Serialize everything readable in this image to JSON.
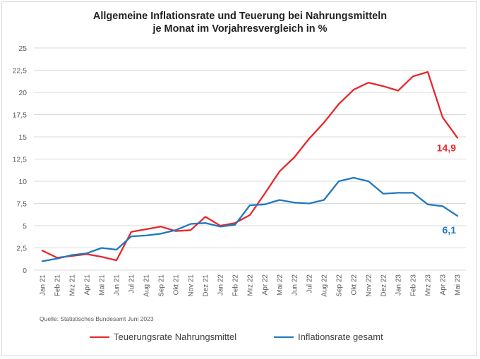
{
  "chart_data": {
    "type": "line",
    "title_line1": "Allgemeine Inflationsrate und Teuerung bei Nahrungsmitteln",
    "title_line2": "je Monat im Vorjahresvergleich in %",
    "source": "Quelle: Statistisches Bundesamt Juni 2023",
    "ylim": [
      0,
      25
    ],
    "yticks": [
      "0",
      "2,5",
      "5",
      "7,5",
      "10",
      "12,5",
      "15",
      "17,5",
      "20",
      "22,5",
      "25"
    ],
    "ytick_values": [
      0,
      2.5,
      5,
      7.5,
      10,
      12.5,
      15,
      17.5,
      20,
      22.5,
      25
    ],
    "grid": true,
    "legend_position": "bottom",
    "categories": [
      "Jan 21",
      "Feb 21",
      "Mrz 21",
      "Apr 21",
      "Mai 21",
      "Jun 21",
      "Jul 21",
      "Aug 21",
      "Sep 21",
      "Okt 21",
      "Nov 21",
      "Dez 21",
      "Jan 22",
      "Feb 22",
      "Mrz 22",
      "Apr 22",
      "Mai 22",
      "Jun 22",
      "Jul 22",
      "Aug 22",
      "Sep 22",
      "Okt 22",
      "Nov 22",
      "Dez 22",
      "Jan 23",
      "Feb 23",
      "Mrz 23",
      "Apr 23",
      "Mai 23"
    ],
    "series": [
      {
        "name": "Teuerungsrate Nahrungsmittel",
        "color": "#e8262b",
        "values": [
          2.2,
          1.4,
          1.6,
          1.8,
          1.5,
          1.1,
          4.3,
          4.6,
          4.9,
          4.4,
          4.5,
          6.0,
          5.0,
          5.3,
          6.2,
          8.6,
          11.1,
          12.7,
          14.8,
          16.6,
          18.7,
          20.3,
          21.1,
          20.7,
          20.2,
          21.8,
          22.3,
          17.2,
          14.9
        ],
        "end_label": "14,9"
      },
      {
        "name": "Inflationsrate gesamt",
        "color": "#1f78c1",
        "values": [
          1.0,
          1.3,
          1.7,
          1.9,
          2.5,
          2.3,
          3.8,
          3.9,
          4.1,
          4.5,
          5.2,
          5.3,
          4.9,
          5.1,
          7.3,
          7.4,
          7.9,
          7.6,
          7.5,
          7.9,
          10.0,
          10.4,
          10.0,
          8.6,
          8.7,
          8.7,
          7.4,
          7.2,
          6.1
        ],
        "end_label": "6,1"
      }
    ]
  }
}
